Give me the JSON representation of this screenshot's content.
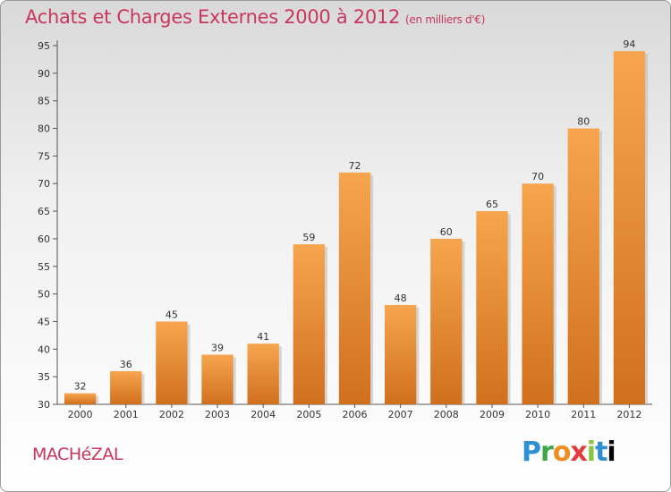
{
  "title": "Achats et Charges Externes 2000 à 2012",
  "subtitle": "(en milliers d'€)",
  "commune": "MACHéZAL",
  "logo": [
    "P",
    "r",
    "o",
    "x",
    "i",
    "t",
    "i"
  ],
  "colors": {
    "bar_light": "#f7a54f",
    "bar_dark": "#d0701e",
    "title": "#c8365f"
  },
  "chart_data": {
    "type": "bar",
    "categories": [
      "2000",
      "2001",
      "2002",
      "2003",
      "2004",
      "2005",
      "2006",
      "2007",
      "2008",
      "2009",
      "2010",
      "2011",
      "2012"
    ],
    "values": [
      32,
      36,
      45,
      39,
      41,
      59,
      72,
      48,
      60,
      65,
      70,
      80,
      94
    ],
    "title": "Achats et Charges Externes 2000 à 2012",
    "subtitle": "(en milliers d'€)",
    "ylim": [
      30,
      95
    ],
    "yticks": [
      30,
      35,
      40,
      45,
      50,
      55,
      60,
      65,
      70,
      75,
      80,
      85,
      90,
      95
    ],
    "grid": false,
    "data_labels": true
  }
}
